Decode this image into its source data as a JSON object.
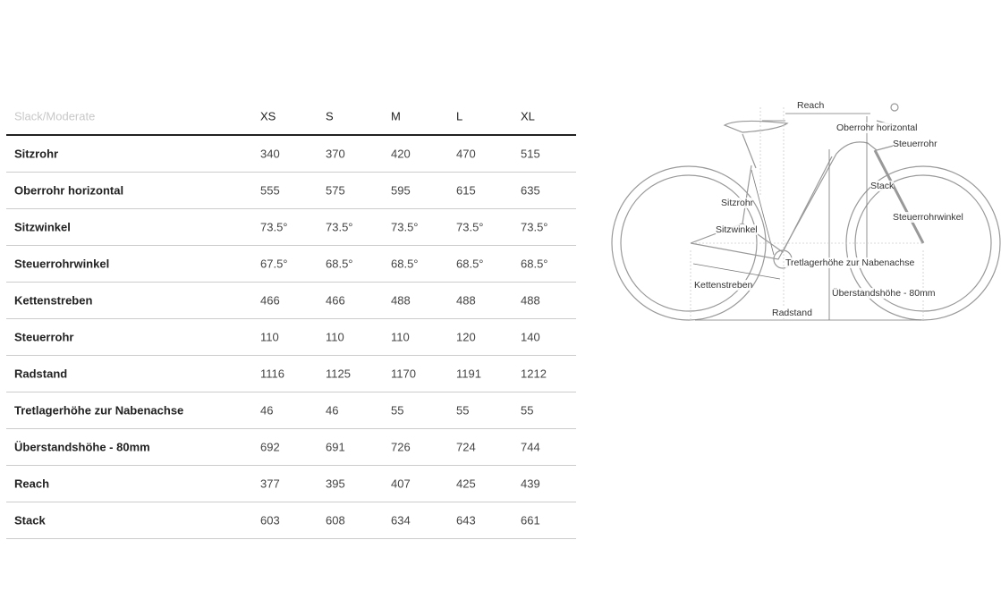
{
  "table": {
    "title": "Slack/Moderate",
    "sizes": [
      "XS",
      "S",
      "M",
      "L",
      "XL"
    ],
    "rows": [
      {
        "label": "Sitzrohr",
        "values": [
          "340",
          "370",
          "420",
          "470",
          "515"
        ]
      },
      {
        "label": "Oberrohr horizontal",
        "values": [
          "555",
          "575",
          "595",
          "615",
          "635"
        ]
      },
      {
        "label": "Sitzwinkel",
        "values": [
          "73.5°",
          "73.5°",
          "73.5°",
          "73.5°",
          "73.5°"
        ]
      },
      {
        "label": "Steuerrohrwinkel",
        "values": [
          "67.5°",
          "68.5°",
          "68.5°",
          "68.5°",
          "68.5°"
        ]
      },
      {
        "label": "Kettenstreben",
        "values": [
          "466",
          "466",
          "488",
          "488",
          "488"
        ]
      },
      {
        "label": "Steuerrohr",
        "values": [
          "110",
          "110",
          "110",
          "120",
          "140"
        ]
      },
      {
        "label": "Radstand",
        "values": [
          "1116",
          "1125",
          "1170",
          "1191",
          "1212"
        ]
      },
      {
        "label": "Tretlagerhöhe zur Nabenachse",
        "values": [
          "46",
          "46",
          "55",
          "55",
          "55"
        ]
      },
      {
        "label": "Überstandshöhe - 80mm",
        "values": [
          "692",
          "691",
          "726",
          "724",
          "744"
        ]
      },
      {
        "label": "Reach",
        "values": [
          "377",
          "395",
          "407",
          "425",
          "439"
        ]
      },
      {
        "label": "Stack",
        "values": [
          "603",
          "608",
          "634",
          "643",
          "661"
        ]
      }
    ]
  },
  "diagram": {
    "reach": "Reach",
    "oberrohr": "Oberrohr horizontal",
    "steuerrohr": "Steuerrohr",
    "stack": "Stack",
    "sitzrohr": "Sitzrohr",
    "steuerrohrwinkel": "Steuerrohrwinkel",
    "sitzwinkel": "Sitzwinkel",
    "tretlager": "Tretlagerhöhe zur Nabenachse",
    "kettenstreben": "Kettenstreben",
    "ueberstand": "Überstandshöhe - 80mm",
    "radstand": "Radstand"
  }
}
